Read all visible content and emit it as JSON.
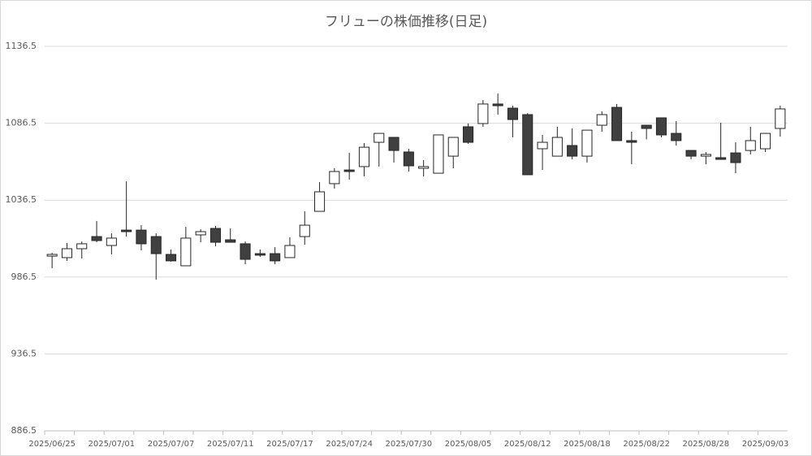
{
  "chart_data": {
    "type": "candlestick",
    "title": "フリューの株価推移(日足)",
    "categories": [
      "2025/06/25",
      null,
      null,
      null,
      "2025/07/01",
      null,
      null,
      null,
      "2025/07/07",
      null,
      null,
      null,
      "2025/07/11",
      null,
      null,
      null,
      "2025/07/17",
      null,
      null,
      null,
      "2025/07/24",
      null,
      null,
      null,
      "2025/07/30",
      null,
      null,
      null,
      "2025/08/05",
      null,
      null,
      null,
      "2025/08/12",
      null,
      null,
      null,
      "2025/08/18",
      null,
      null,
      null,
      "2025/08/22",
      null,
      null,
      null,
      "2025/08/28",
      null,
      null,
      null,
      "2025/09/03",
      null
    ],
    "series": [
      {
        "up_color": "#ffffff",
        "down_color": "#404040",
        "edge_color": "#262626",
        "open": [
          1000.1,
          999.1,
          1004.9,
          1012.8,
          1007.0,
          1017.0,
          1017.0,
          1012.8,
          1001.2,
          993.8,
          1013.9,
          1018.1,
          1010.7,
          1008.1,
          1001.7,
          1001.7,
          999.1,
          1012.8,
          1029.2,
          1047.2,
          1056.1,
          1058.3,
          1074.1,
          1077.3,
          1067.8,
          1057.2,
          1054.0,
          1065.1,
          1084.2,
          1086.3,
          1099.0,
          1096.3,
          1092.1,
          1069.9,
          1065.1,
          1072.0,
          1065.1,
          1085.2,
          1096.8,
          1075.2,
          1085.2,
          1090.0,
          1079.9,
          1068.8,
          1065.1,
          1064.1,
          1067.2,
          1068.8,
          1069.9,
          1083.1
        ],
        "high": [
          1002.2,
          1008.6,
          1009.6,
          1022.9,
          1014.9,
          1048.7,
          1020.2,
          1014.9,
          1004.4,
          1019.2,
          1017.6,
          1019.7,
          1018.1,
          1009.6,
          1004.4,
          1005.9,
          1012.3,
          1029.2,
          1048.2,
          1057.2,
          1067.2,
          1073.6,
          1079.9,
          1077.3,
          1069.9,
          1062.5,
          1078.9,
          1077.3,
          1086.3,
          1101.6,
          1105.8,
          1097.9,
          1093.1,
          1078.9,
          1084.2,
          1083.1,
          1082.0,
          1094.2,
          1099.0,
          1081.0,
          1085.2,
          1090.0,
          1087.9,
          1068.8,
          1067.8,
          1086.8,
          1074.1,
          1084.2,
          1079.9,
          1097.9
        ],
        "low": [
          992.2,
          997.0,
          998.5,
          1009.1,
          1001.2,
          1012.8,
          1003.8,
          984.8,
          996.5,
          993.8,
          1009.1,
          1006.5,
          1009.1,
          994.8,
          999.6,
          994.8,
          999.1,
          1007.5,
          1029.2,
          1044.0,
          1049.8,
          1051.9,
          1058.3,
          1060.9,
          1055.1,
          1051.9,
          1054.0,
          1057.2,
          1073.1,
          1084.2,
          1092.1,
          1077.3,
          1053.0,
          1056.1,
          1065.1,
          1063.0,
          1060.9,
          1081.0,
          1075.2,
          1059.8,
          1076.0,
          1077.3,
          1072.0,
          1063.0,
          1059.8,
          1063.0,
          1054.0,
          1066.2,
          1067.8,
          1077.8
        ],
        "close": [
          1001.2,
          1004.9,
          1008.1,
          1010.2,
          1011.8,
          1016.0,
          1008.1,
          1001.7,
          997.0,
          1011.8,
          1016.0,
          1009.1,
          1009.1,
          998.0,
          1000.7,
          997.0,
          1007.0,
          1020.2,
          1041.9,
          1055.1,
          1055.1,
          1070.9,
          1079.9,
          1068.8,
          1058.8,
          1058.3,
          1078.9,
          1077.3,
          1074.1,
          1099.0,
          1097.9,
          1088.9,
          1053.0,
          1074.1,
          1077.3,
          1065.1,
          1082.0,
          1092.1,
          1075.2,
          1074.1,
          1083.1,
          1078.9,
          1075.2,
          1065.1,
          1066.2,
          1063.0,
          1060.9,
          1075.2,
          1079.9,
          1095.8
        ]
      }
    ],
    "ylim": [
      886.5,
      1136.5
    ],
    "yticks": [
      886.5,
      936.5,
      986.5,
      1036.5,
      1086.5,
      1136.5
    ],
    "grid": true
  }
}
